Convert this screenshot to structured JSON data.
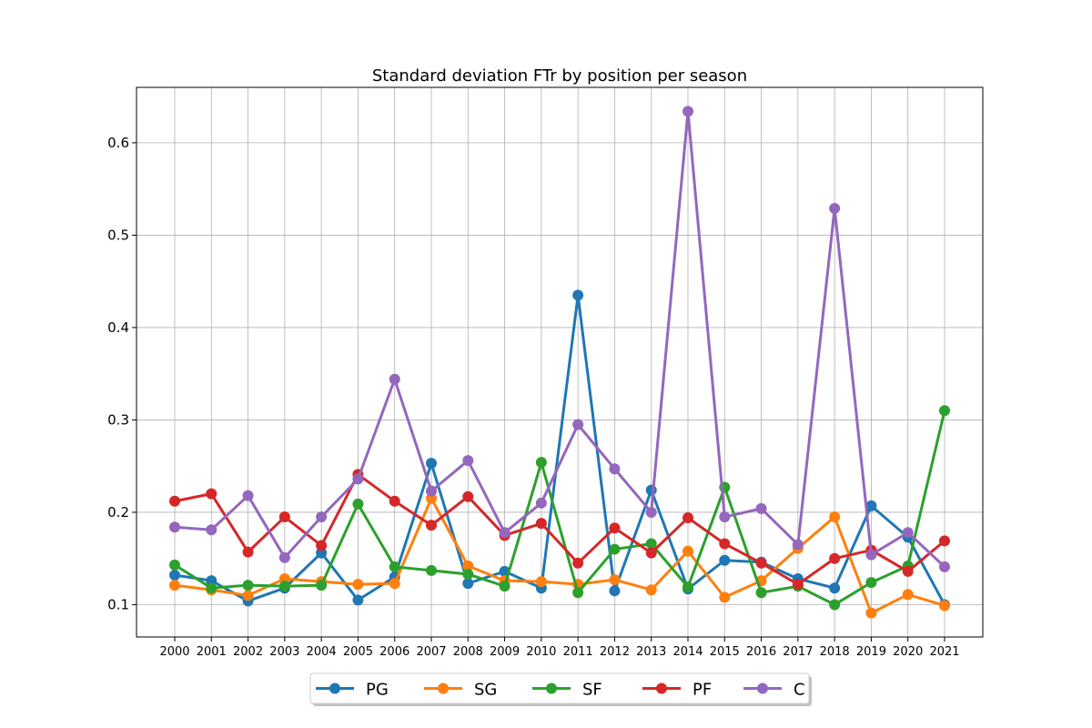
{
  "chart_data": {
    "type": "line",
    "title": "Standard deviation FTr by position per season",
    "xlabel": "",
    "ylabel": "",
    "categories": [
      "2000",
      "2001",
      "2002",
      "2003",
      "2004",
      "2005",
      "2006",
      "2007",
      "2008",
      "2009",
      "2010",
      "2011",
      "2012",
      "2013",
      "2014",
      "2015",
      "2016",
      "2017",
      "2018",
      "2019",
      "2020",
      "2021"
    ],
    "ylim": [
      0.065,
      0.66
    ],
    "yticks": [
      "0.1",
      "0.2",
      "0.3",
      "0.4",
      "0.5",
      "0.6"
    ],
    "grid": true,
    "legend_position": "bottom-center",
    "series": [
      {
        "name": "PG",
        "color": "#1f77b4",
        "values": [
          0.132,
          0.126,
          0.104,
          0.118,
          0.156,
          0.105,
          0.13,
          0.253,
          0.123,
          0.136,
          0.118,
          0.435,
          0.115,
          0.224,
          0.117,
          0.148,
          0.146,
          0.128,
          0.118,
          0.207,
          0.173,
          0.1
        ]
      },
      {
        "name": "SG",
        "color": "#ff7f0e",
        "values": [
          0.121,
          0.116,
          0.11,
          0.128,
          0.125,
          0.122,
          0.123,
          0.215,
          0.142,
          0.126,
          0.125,
          0.122,
          0.127,
          0.116,
          0.158,
          0.108,
          0.126,
          0.161,
          0.195,
          0.091,
          0.111,
          0.099
        ]
      },
      {
        "name": "SF",
        "color": "#2ca02c",
        "values": [
          0.143,
          0.118,
          0.121,
          0.12,
          0.121,
          0.209,
          0.141,
          0.137,
          0.133,
          0.12,
          0.254,
          0.113,
          0.16,
          0.166,
          0.119,
          0.227,
          0.113,
          0.12,
          0.1,
          0.124,
          0.142,
          0.31
        ]
      },
      {
        "name": "PF",
        "color": "#d62728",
        "values": [
          0.212,
          0.22,
          0.157,
          0.195,
          0.164,
          0.241,
          0.212,
          0.186,
          0.217,
          0.175,
          0.188,
          0.145,
          0.183,
          0.156,
          0.194,
          0.166,
          0.145,
          0.122,
          0.15,
          0.159,
          0.136,
          0.169
        ]
      },
      {
        "name": "C",
        "color": "#9467bd",
        "values": [
          0.184,
          0.181,
          0.218,
          0.151,
          0.195,
          0.236,
          0.344,
          0.223,
          0.256,
          0.178,
          0.21,
          0.295,
          0.247,
          0.2,
          0.634,
          0.195,
          0.204,
          0.165,
          0.529,
          0.154,
          0.178,
          0.141
        ]
      }
    ]
  }
}
